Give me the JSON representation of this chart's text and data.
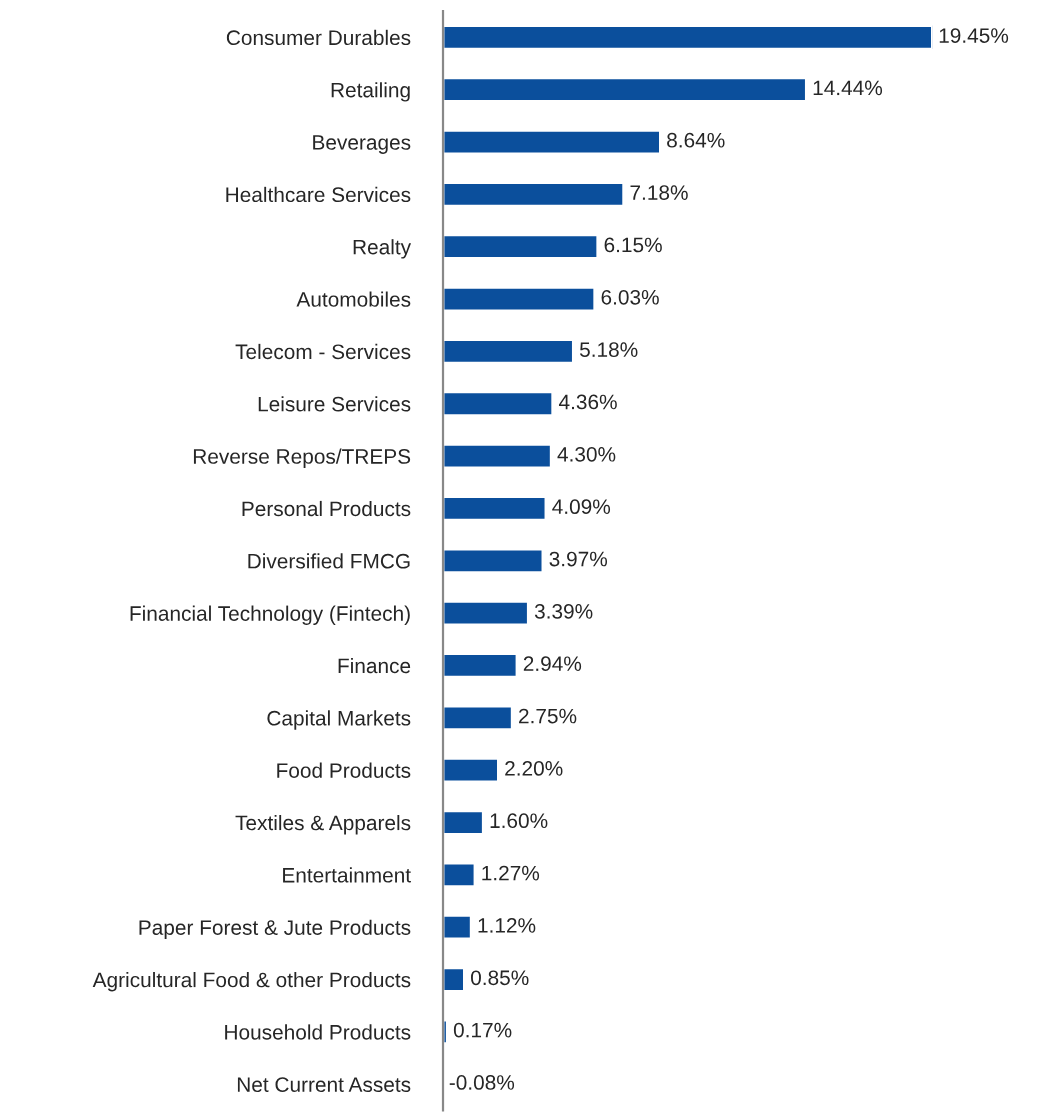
{
  "chart_data": {
    "type": "bar",
    "orientation": "horizontal",
    "color": "#0b4f9c",
    "categories": [
      "Consumer Durables",
      "Retailing",
      "Beverages",
      "Healthcare Services",
      "Realty",
      "Automobiles",
      "Telecom - Services",
      "Leisure Services",
      "Reverse Repos/TREPS",
      "Personal Products",
      "Diversified FMCG",
      "Financial Technology (Fintech)",
      "Finance",
      "Capital Markets",
      "Food Products",
      "Textiles & Apparels",
      "Entertainment",
      "Paper Forest & Jute Products",
      "Agricultural Food & other Products",
      "Household Products",
      "Net Current Assets"
    ],
    "values": [
      19.45,
      14.44,
      8.64,
      7.18,
      6.15,
      6.03,
      5.18,
      4.36,
      4.3,
      4.09,
      3.97,
      3.39,
      2.94,
      2.75,
      2.2,
      1.6,
      1.27,
      1.12,
      0.85,
      0.17,
      -0.08
    ],
    "value_labels": [
      "19.45%",
      "14.44%",
      "8.64%",
      "7.18%",
      "6.15%",
      "6.03%",
      "5.18%",
      "4.36%",
      "4.30%",
      "4.09%",
      "3.97%",
      "3.39%",
      "2.94%",
      "2.75%",
      "2.20%",
      "1.60%",
      "1.27%",
      "1.12%",
      "0.85%",
      "0.17%",
      "-0.08%"
    ],
    "tick_labels": "y",
    "grid": false,
    "legend": false
  }
}
